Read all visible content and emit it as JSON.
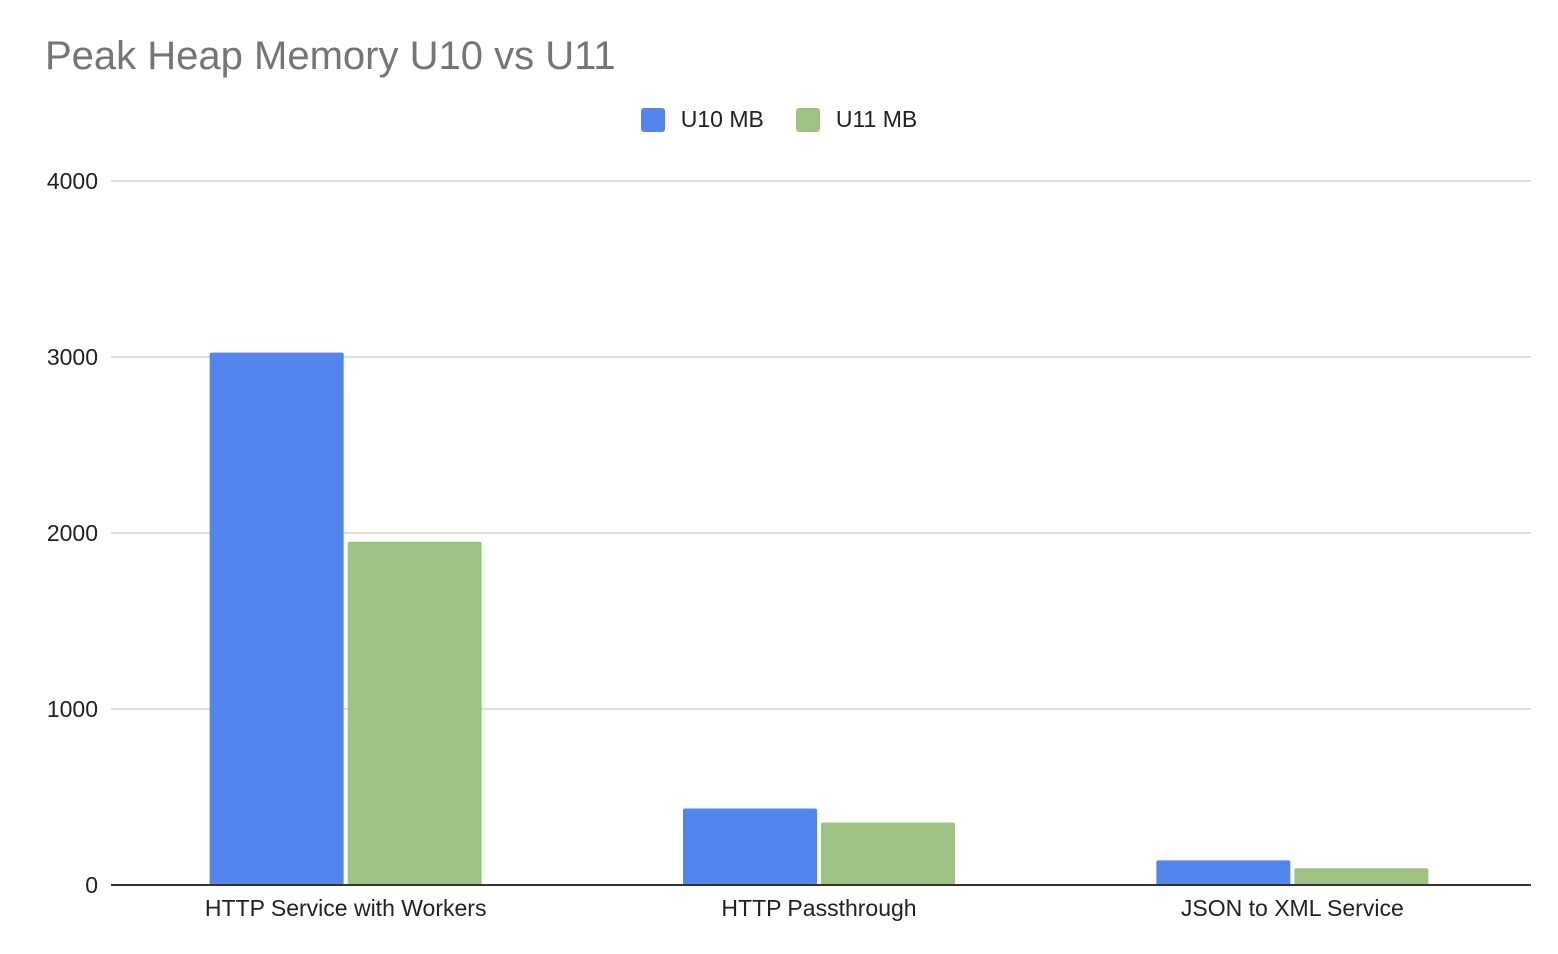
{
  "chart_data": {
    "type": "bar",
    "title": "Peak Heap Memory U10 vs U11",
    "xlabel": "",
    "ylabel": "",
    "categories": [
      "HTTP Service with Workers",
      "HTTP Passthrough",
      "JSON to XML Service"
    ],
    "series": [
      {
        "name": "U10 MB",
        "color": "#5485ec",
        "values": [
          3025,
          435,
          140
        ]
      },
      {
        "name": "U11 MB",
        "color": "#9ec284",
        "values": [
          1950,
          355,
          95
        ]
      }
    ],
    "ylim": [
      0,
      4000
    ],
    "yticks": [
      "0",
      "1000",
      "2000",
      "3000",
      "4000"
    ],
    "grid": true,
    "legend_position": "top-center",
    "gridline_color": "#cccccc",
    "axis_color": "#333333"
  }
}
